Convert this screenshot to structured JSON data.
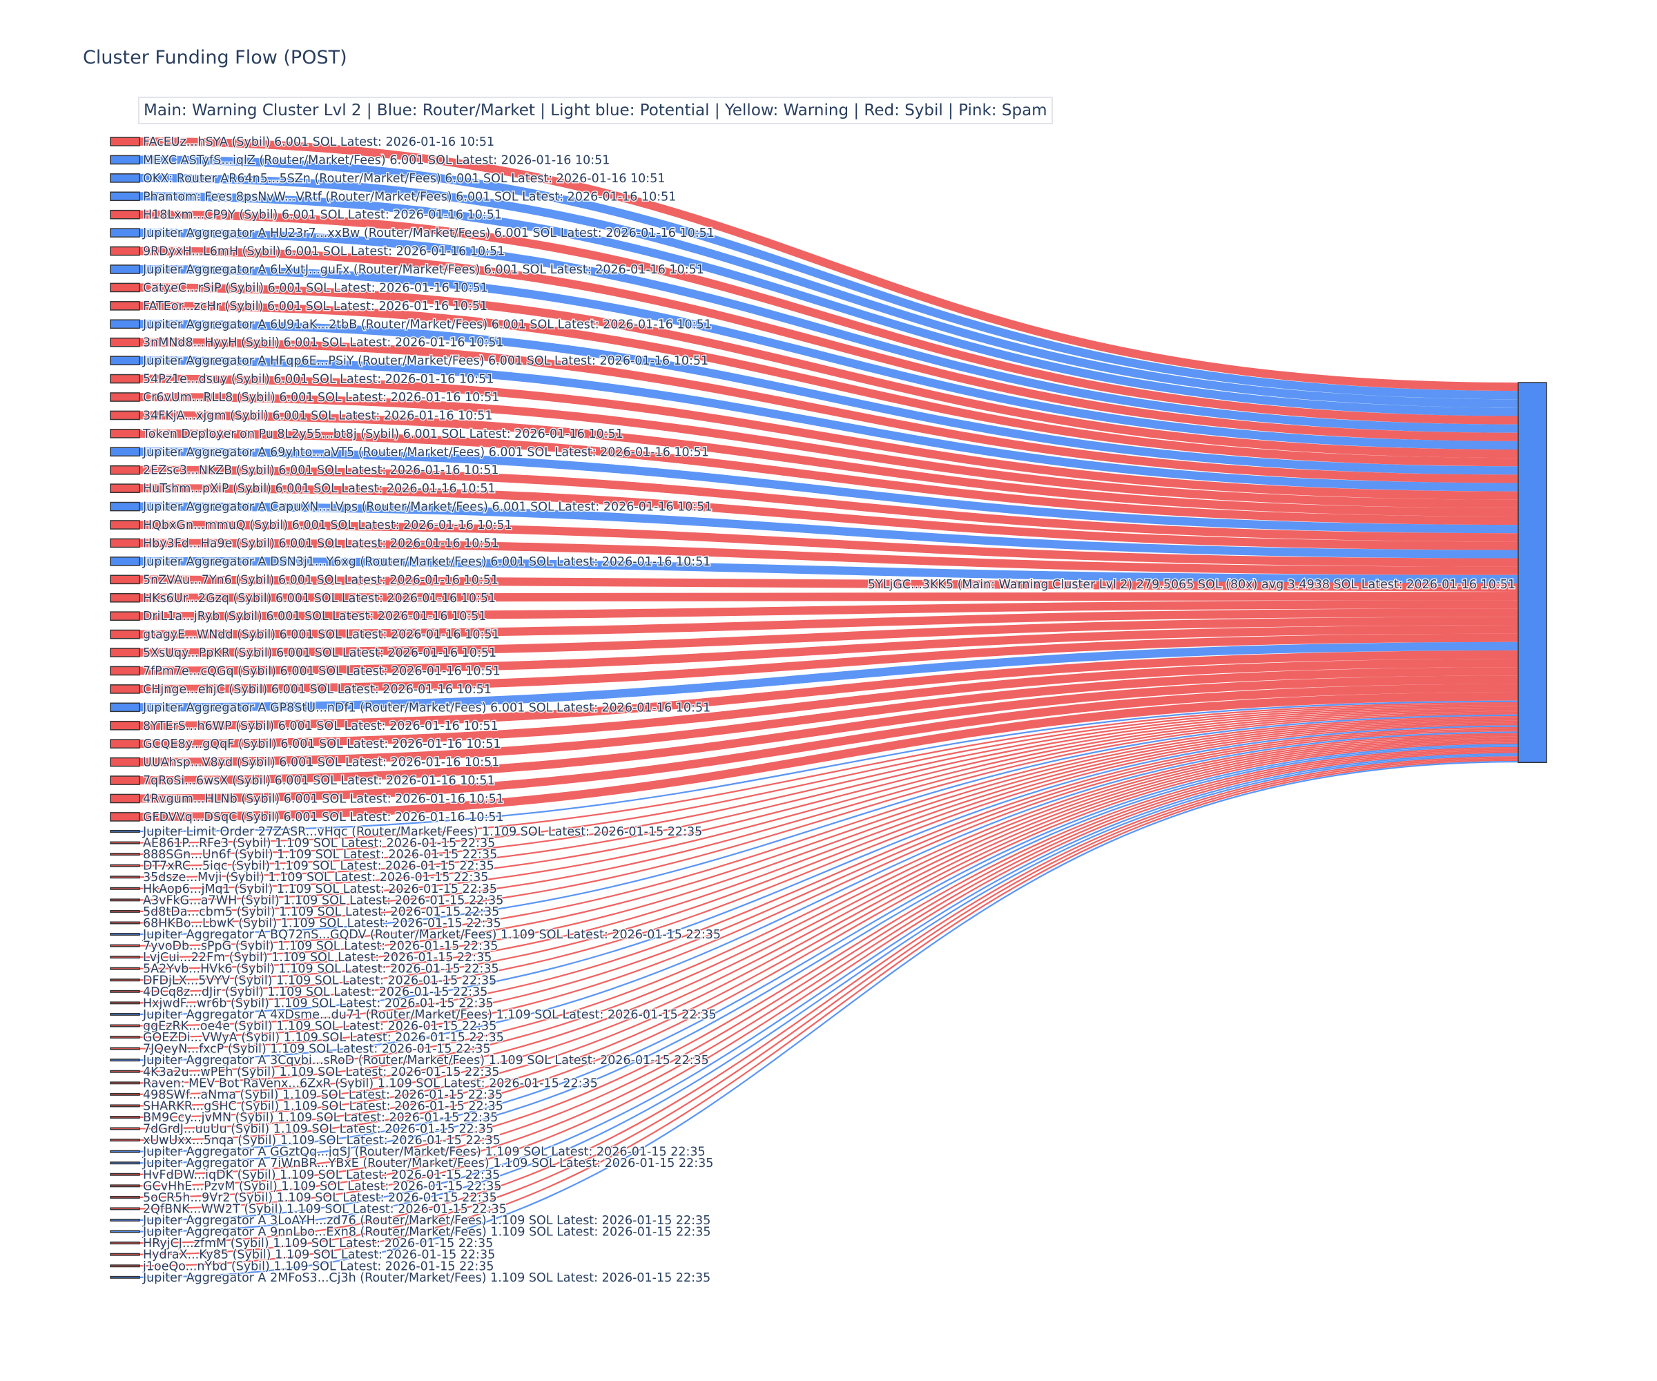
{
  "chart_data": {
    "type": "sankey",
    "title": "Cluster Funding Flow (POST)",
    "legend_text": "Main: Warning Cluster Lvl 2  |  Blue: Router/Market | Light blue: Potential | Yellow: Warning | Red: Sybil | Pink: Spam",
    "colors": {
      "sybil": "#ef5656",
      "router": "#4e8cf4",
      "target": "#4e8cf4",
      "text": "#2a3f5f"
    },
    "target": {
      "label": "5YLjGC...3KK5 (Main: Warning Cluster Lvl 2) 279.5065 SOL (80x) avg 3.4938 SOL Latest: 2026-01-16 10:51",
      "value": 279.5065
    },
    "sources": [
      {
        "label": "FAcEUz...hSYA (Sybil) 6.001 SOL Latest: 2026-01-16 10:51",
        "cat": "sybil",
        "value": 6.001
      },
      {
        "label": "MEXC ASTyfS...iqlZ (Router/Market/Fees) 6.001 SOL Latest: 2026-01-16 10:51",
        "cat": "router",
        "value": 6.001
      },
      {
        "label": "OKX: Router AR64n5...5SZn (Router/Market/Fees) 6.001 SOL Latest: 2026-01-16 10:51",
        "cat": "router",
        "value": 6.001
      },
      {
        "label": "Phantom: Fees 8psNvW...VRtf (Router/Market/Fees) 6.001 SOL Latest: 2026-01-16 10:51",
        "cat": "router",
        "value": 6.001
      },
      {
        "label": "H18Lxm...CP9Y (Sybil) 6.001 SOL Latest: 2026-01-16 10:51",
        "cat": "sybil",
        "value": 6.001
      },
      {
        "label": "Jupiter Aggregator A HU23r7...xxBw (Router/Market/Fees) 6.001 SOL Latest: 2026-01-16 10:51",
        "cat": "router",
        "value": 6.001
      },
      {
        "label": "9RDyxH...L6mH (Sybil) 6.001 SOL Latest: 2026-01-16 10:51",
        "cat": "sybil",
        "value": 6.001
      },
      {
        "label": "Jupiter Aggregator A 6LXutJ...guFx (Router/Market/Fees) 6.001 SOL Latest: 2026-01-16 10:51",
        "cat": "router",
        "value": 6.001
      },
      {
        "label": "CatyeC...rSiP (Sybil) 6.001 SOL Latest: 2026-01-16 10:51",
        "cat": "sybil",
        "value": 6.001
      },
      {
        "label": "FATEor...zcHr (Sybil) 6.001 SOL Latest: 2026-01-16 10:51",
        "cat": "sybil",
        "value": 6.001
      },
      {
        "label": "Jupiter Aggregator A 6U91aK...2tbB (Router/Market/Fees) 6.001 SOL Latest: 2026-01-16 10:51",
        "cat": "router",
        "value": 6.001
      },
      {
        "label": "3nMNd8...HyyH (Sybil) 6.001 SOL Latest: 2026-01-16 10:51",
        "cat": "sybil",
        "value": 6.001
      },
      {
        "label": "Jupiter Aggregator A HFqp6E...PSiY (Router/Market/Fees) 6.001 SOL Latest: 2026-01-16 10:51",
        "cat": "router",
        "value": 6.001
      },
      {
        "label": "54Pz1e...dsuy (Sybil) 6.001 SOL Latest: 2026-01-16 10:51",
        "cat": "sybil",
        "value": 6.001
      },
      {
        "label": "Cr6vUm...RLL8 (Sybil) 6.001 SOL Latest: 2026-01-16 10:51",
        "cat": "sybil",
        "value": 6.001
      },
      {
        "label": "34FKjA...xjgm (Sybil) 6.001 SOL Latest: 2026-01-16 10:51",
        "cat": "sybil",
        "value": 6.001
      },
      {
        "label": "Token Deployer on Pu 8L2y55...bt8j (Sybil) 6.001 SOL Latest: 2026-01-16 10:51",
        "cat": "sybil",
        "value": 6.001
      },
      {
        "label": "Jupiter Aggregator A 69yhto...aVT5 (Router/Market/Fees) 6.001 SOL Latest: 2026-01-16 10:51",
        "cat": "router",
        "value": 6.001
      },
      {
        "label": "2EZsc3...NKZB (Sybil) 6.001 SOL Latest: 2026-01-16 10:51",
        "cat": "sybil",
        "value": 6.001
      },
      {
        "label": "HuTshm...pXiP (Sybil) 6.001 SOL Latest: 2026-01-16 10:51",
        "cat": "sybil",
        "value": 6.001
      },
      {
        "label": "Jupiter Aggregator A CapuXN...LVps (Router/Market/Fees) 6.001 SOL Latest: 2026-01-16 10:51",
        "cat": "router",
        "value": 6.001
      },
      {
        "label": "HQbxGn...mmuQ (Sybil) 6.001 SOL Latest: 2026-01-16 10:51",
        "cat": "sybil",
        "value": 6.001
      },
      {
        "label": "Hby3Fd...Ha9e (Sybil) 6.001 SOL Latest: 2026-01-16 10:51",
        "cat": "sybil",
        "value": 6.001
      },
      {
        "label": "Jupiter Aggregator A DSN3j1...Y6xg (Router/Market/Fees) 6.001 SOL Latest: 2026-01-16 10:51",
        "cat": "router",
        "value": 6.001
      },
      {
        "label": "5nZVAu...7Yn6 (Sybil) 6.001 SOL Latest: 2026-01-16 10:51",
        "cat": "sybil",
        "value": 6.001
      },
      {
        "label": "HKs6Ur...2Gzq (Sybil) 6.001 SOL Latest: 2026-01-16 10:51",
        "cat": "sybil",
        "value": 6.001
      },
      {
        "label": "DriL1a...jRyb (Sybil) 6.001 SOL Latest: 2026-01-16 10:51",
        "cat": "sybil",
        "value": 6.001
      },
      {
        "label": "gtagyE...WNdd (Sybil) 6.001 SOL Latest: 2026-01-16 10:51",
        "cat": "sybil",
        "value": 6.001
      },
      {
        "label": "5XsUqy...PpKR (Sybil) 6.001 SOL Latest: 2026-01-16 10:51",
        "cat": "sybil",
        "value": 6.001
      },
      {
        "label": "7fPm7e...cQGq (Sybil) 6.001 SOL Latest: 2026-01-16 10:51",
        "cat": "sybil",
        "value": 6.001
      },
      {
        "label": "CHjnge...ehjC (Sybil) 6.001 SOL Latest: 2026-01-16 10:51",
        "cat": "sybil",
        "value": 6.001
      },
      {
        "label": "Jupiter Aggregator A GP8StU...nDf1 (Router/Market/Fees) 6.001 SOL Latest: 2026-01-16 10:51",
        "cat": "router",
        "value": 6.001
      },
      {
        "label": "8YTErS...h6WP (Sybil) 6.001 SOL Latest: 2026-01-16 10:51",
        "cat": "sybil",
        "value": 6.001
      },
      {
        "label": "GCQE8y...gQqF (Sybil) 6.001 SOL Latest: 2026-01-16 10:51",
        "cat": "sybil",
        "value": 6.001
      },
      {
        "label": "UUAhsp...V8yd (Sybil) 6.001 SOL Latest: 2026-01-16 10:51",
        "cat": "sybil",
        "value": 6.001
      },
      {
        "label": "7qRoSi...6wsX (Sybil) 6.001 SOL Latest: 2026-01-16 10:51",
        "cat": "sybil",
        "value": 6.001
      },
      {
        "label": "4Rvgum...HLNb (Sybil) 6.001 SOL Latest: 2026-01-16 10:51",
        "cat": "sybil",
        "value": 6.001
      },
      {
        "label": "GFDVVq...DSqC (Sybil) 6.001 SOL Latest: 2026-01-16 10:51",
        "cat": "sybil",
        "value": 6.001
      },
      {
        "label": "Jupiter Limit Order  27ZASR...vHqc (Router/Market/Fees) 1.109 SOL Latest: 2026-01-15 22:35",
        "cat": "router",
        "value": 1.109
      },
      {
        "label": "AE861P...RFe3 (Sybil) 1.109 SOL Latest: 2026-01-15 22:35",
        "cat": "sybil",
        "value": 1.109
      },
      {
        "label": "888SGn...Un6f (Sybil) 1.109 SOL Latest: 2026-01-15 22:35",
        "cat": "sybil",
        "value": 1.109
      },
      {
        "label": "DT7xRC...5iqc (Sybil) 1.109 SOL Latest: 2026-01-15 22:35",
        "cat": "sybil",
        "value": 1.109
      },
      {
        "label": "35dsze...Mvji (Sybil) 1.109 SOL Latest: 2026-01-15 22:35",
        "cat": "sybil",
        "value": 1.109
      },
      {
        "label": "HkAop6...jMq1 (Sybil) 1.109 SOL Latest: 2026-01-15 22:35",
        "cat": "sybil",
        "value": 1.109
      },
      {
        "label": "A3vFkG...a7WH (Sybil) 1.109 SOL Latest: 2026-01-15 22:35",
        "cat": "sybil",
        "value": 1.109
      },
      {
        "label": "5d8tDa...cbm5 (Sybil) 1.109 SOL Latest: 2026-01-15 22:35",
        "cat": "sybil",
        "value": 1.109
      },
      {
        "label": "68HKBo...LbwK (Sybil) 1.109 SOL Latest: 2026-01-15 22:35",
        "cat": "sybil",
        "value": 1.109
      },
      {
        "label": "Jupiter Aggregator A BQ72nS...GQDV (Router/Market/Fees) 1.109 SOL Latest: 2026-01-15 22:35",
        "cat": "router",
        "value": 1.109
      },
      {
        "label": "7yvoDb...sPpG (Sybil) 1.109 SOL Latest: 2026-01-15 22:35",
        "cat": "sybil",
        "value": 1.109
      },
      {
        "label": "LvjCui...22Fm (Sybil) 1.109 SOL Latest: 2026-01-15 22:35",
        "cat": "sybil",
        "value": 1.109
      },
      {
        "label": "5A2Yvb...HVk6 (Sybil) 1.109 SOL Latest: 2026-01-15 22:35",
        "cat": "sybil",
        "value": 1.109
      },
      {
        "label": "DFDjLX...5VYV (Sybil) 1.109 SOL Latest: 2026-01-15 22:35",
        "cat": "sybil",
        "value": 1.109
      },
      {
        "label": "4DCq8z...dJir (Sybil) 1.109 SOL Latest: 2026-01-15 22:35",
        "cat": "sybil",
        "value": 1.109
      },
      {
        "label": "HxjwdF...wr6b (Sybil) 1.109 SOL Latest: 2026-01-15 22:35",
        "cat": "sybil",
        "value": 1.109
      },
      {
        "label": "Jupiter Aggregator A 4xDsme...du71 (Router/Market/Fees) 1.109 SOL Latest: 2026-01-15 22:35",
        "cat": "router",
        "value": 1.109
      },
      {
        "label": "ggEzRK...oe4e (Sybil) 1.109 SOL Latest: 2026-01-15 22:35",
        "cat": "sybil",
        "value": 1.109
      },
      {
        "label": "GOEZDi...VWyA (Sybil) 1.109 SOL Latest: 2026-01-15 22:35",
        "cat": "sybil",
        "value": 1.109
      },
      {
        "label": "7JQeyN...fxcP (Sybil) 1.109 SOL Latest: 2026-01-15 22:35",
        "cat": "sybil",
        "value": 1.109
      },
      {
        "label": "Jupiter Aggregator A 3Cqvbi...sRoD (Router/Market/Fees) 1.109 SOL Latest: 2026-01-15 22:35",
        "cat": "router",
        "value": 1.109
      },
      {
        "label": "4K3a2u...wPEh (Sybil) 1.109 SOL Latest: 2026-01-15 22:35",
        "cat": "sybil",
        "value": 1.109
      },
      {
        "label": "Raven: MEV Bot RaVenx...6ZxR (Sybil) 1.109 SOL Latest: 2026-01-15 22:35",
        "cat": "sybil",
        "value": 1.109
      },
      {
        "label": "498SWf...aNma (Sybil) 1.109 SOL Latest: 2026-01-15 22:35",
        "cat": "sybil",
        "value": 1.109
      },
      {
        "label": "SHARKR...gSHC (Sybil) 1.109 SOL Latest: 2026-01-15 22:35",
        "cat": "sybil",
        "value": 1.109
      },
      {
        "label": "BM9Ccy...jvMN (Sybil) 1.109 SOL Latest: 2026-01-15 22:35",
        "cat": "sybil",
        "value": 1.109
      },
      {
        "label": "7dGrdJ...uuUu (Sybil) 1.109 SOL Latest: 2026-01-15 22:35",
        "cat": "sybil",
        "value": 1.109
      },
      {
        "label": "xUwUxx...5nqa (Sybil) 1.109 SOL Latest: 2026-01-15 22:35",
        "cat": "sybil",
        "value": 1.109
      },
      {
        "label": "Jupiter Aggregator A GGztQq...jqSJ (Router/Market/Fees) 1.109 SOL Latest: 2026-01-15 22:35",
        "cat": "router",
        "value": 1.109
      },
      {
        "label": "Jupiter Aggregator A 7iWnBR...YBxE (Router/Market/Fees) 1.109 SOL Latest: 2026-01-15 22:35",
        "cat": "router",
        "value": 1.109
      },
      {
        "label": "HvFdDW...iqDK (Sybil) 1.109 SOL Latest: 2026-01-15 22:35",
        "cat": "sybil",
        "value": 1.109
      },
      {
        "label": "GCvHhE...PzvM (Sybil) 1.109 SOL Latest: 2026-01-15 22:35",
        "cat": "sybil",
        "value": 1.109
      },
      {
        "label": "5oCR5h...9Vr2 (Sybil) 1.109 SOL Latest: 2026-01-15 22:35",
        "cat": "sybil",
        "value": 1.109
      },
      {
        "label": "2QfBNK...WW2T (Sybil) 1.109 SOL Latest: 2026-01-15 22:35",
        "cat": "sybil",
        "value": 1.109
      },
      {
        "label": "Jupiter Aggregator A 3LoAYH...zd76 (Router/Market/Fees) 1.109 SOL Latest: 2026-01-15 22:35",
        "cat": "router",
        "value": 1.109
      },
      {
        "label": "Jupiter Aggregator A 9nnLbo...Exn8 (Router/Market/Fees) 1.109 SOL Latest: 2026-01-15 22:35",
        "cat": "router",
        "value": 1.109
      },
      {
        "label": "HRyjCJ...zfmM (Sybil) 1.109 SOL Latest: 2026-01-15 22:35",
        "cat": "sybil",
        "value": 1.109
      },
      {
        "label": "HydraX...Ky85 (Sybil) 1.109 SOL Latest: 2026-01-15 22:35",
        "cat": "sybil",
        "value": 1.109
      },
      {
        "label": "j1oeQo...nYbd (Sybil) 1.109 SOL Latest: 2026-01-15 22:35",
        "cat": "sybil",
        "value": 1.109
      },
      {
        "label": "Jupiter Aggregator A 2MFoS3...Cj3h (Router/Market/Fees) 1.109 SOL Latest: 2026-01-15 22:35",
        "cat": "router",
        "value": 1.109
      }
    ]
  }
}
